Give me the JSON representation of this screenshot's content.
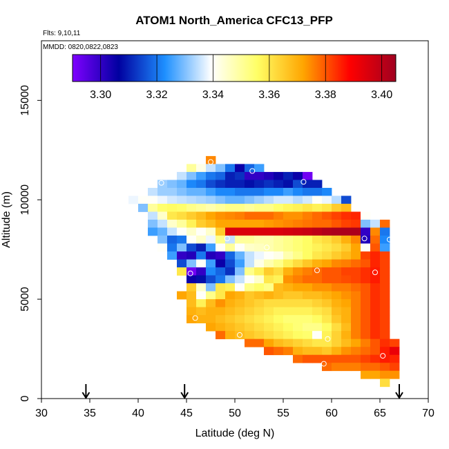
{
  "chart_data": {
    "type": "heatmap",
    "title": "ATOM1 North_America CFC13_PFP",
    "flights_label": "Flts: 9,10,11",
    "dates_label": "MMDD: 0820,0822,0823",
    "xlabel": "Latitude (deg N)",
    "ylabel": "Altitude (m)",
    "xlim": [
      30,
      70
    ],
    "ylim": [
      0,
      18000
    ],
    "x_ticks": [
      "30",
      "35",
      "40",
      "45",
      "50",
      "55",
      "60",
      "65",
      "70"
    ],
    "y_ticks": [
      "0",
      "5000",
      "10000",
      "15000"
    ],
    "colorbar": {
      "min": 3.29,
      "max": 3.405,
      "ticks": [
        "3.30",
        "3.32",
        "3.34",
        "3.36",
        "3.38",
        "3.40"
      ],
      "colors": [
        "#7f00ff",
        "#0000a0",
        "#1e90ff",
        "#ffffff",
        "#ffff66",
        "#ffa500",
        "#ff0000",
        "#a00020"
      ]
    },
    "cell_size": {
      "lat": 1.0,
      "alt": 400
    },
    "flight_markers_lat": [
      34.6,
      44.8,
      67.0
    ],
    "rows": [
      {
        "alt": 11800,
        "start": 47.0,
        "values": [
          3.375
        ]
      },
      {
        "alt": 11400,
        "start": 45.0,
        "values": [
          3.35,
          3.342,
          3.335,
          3.33,
          3.32,
          3.305,
          3.318,
          3.325
        ]
      },
      {
        "alt": 11000,
        "start": 44.0,
        "values": [
          3.335,
          3.33,
          3.325,
          3.32,
          3.318,
          3.31,
          3.312,
          3.3,
          3.3,
          3.302,
          3.305,
          3.31,
          3.305,
          3.292
        ]
      },
      {
        "alt": 10600,
        "start": 42.0,
        "values": [
          3.332,
          3.33,
          3.328,
          3.322,
          3.32,
          3.315,
          3.312,
          3.31,
          3.31,
          3.308,
          3.31,
          3.312,
          3.31,
          3.308,
          3.315,
          3.31,
          3.31
        ]
      },
      {
        "alt": 10200,
        "start": 41.0,
        "values": [
          3.335,
          3.332,
          3.332,
          3.33,
          3.328,
          3.328,
          3.325,
          3.322,
          3.322,
          3.32,
          3.32,
          3.32,
          3.322,
          3.322,
          3.325,
          3.322,
          3.32,
          3.32,
          3.322
        ]
      },
      {
        "alt": 9800,
        "start": 39.0,
        "values": [
          3.338,
          3.34,
          3.34,
          3.338,
          3.336,
          3.335,
          3.334,
          3.333,
          3.332,
          3.33,
          3.328,
          3.328,
          3.33,
          3.332,
          3.334,
          3.336,
          3.336,
          3.334,
          3.336,
          3.34,
          3.338,
          3.334,
          3.315
        ]
      },
      {
        "alt": 9400,
        "start": 40.0,
        "values": [
          3.33,
          3.35,
          3.355,
          3.356,
          3.355,
          3.352,
          3.35,
          3.348,
          3.35,
          3.352,
          3.352,
          3.35,
          3.352,
          3.352,
          3.355,
          3.357,
          3.358,
          3.36,
          3.358,
          3.36,
          3.365,
          3.368
        ]
      },
      {
        "alt": 9000,
        "start": 41.0,
        "values": [
          3.335,
          3.345,
          3.36,
          3.362,
          3.365,
          3.368,
          3.372,
          3.374,
          3.375,
          3.376,
          3.378,
          3.378,
          3.378,
          3.376,
          3.374,
          3.374,
          3.376,
          3.378,
          3.38,
          3.382,
          3.384,
          3.385,
          3.34
        ]
      },
      {
        "alt": 8600,
        "start": 41.0,
        "values": [
          3.33,
          3.335,
          3.345,
          3.35,
          3.358,
          3.365,
          3.368,
          3.372,
          3.372,
          3.372,
          3.372,
          3.372,
          3.373,
          3.374,
          3.375,
          3.376,
          3.377,
          3.378,
          3.378,
          3.38,
          3.382,
          3.383,
          3.33,
          3.335,
          3.378
        ]
      },
      {
        "alt": 8200,
        "start": 41.0,
        "values": [
          3.325,
          3.328,
          3.335,
          3.34,
          3.345,
          3.34,
          3.345,
          3.365,
          3.395,
          3.395,
          3.395,
          3.395,
          3.395,
          3.395,
          3.396,
          3.397,
          3.398,
          3.4,
          3.402,
          3.403,
          3.403,
          3.403,
          3.3,
          3.375,
          3.32
        ]
      },
      {
        "alt": 7800,
        "start": 42.0,
        "values": [
          3.33,
          3.318,
          3.32,
          3.34,
          3.345,
          3.338,
          3.352,
          3.335,
          3.35,
          3.35,
          3.348,
          3.348,
          3.35,
          3.352,
          3.354,
          3.356,
          3.36,
          3.362,
          3.365,
          3.37,
          3.375,
          3.302,
          3.378,
          3.322
        ]
      },
      {
        "alt": 7400,
        "start": 42.0,
        "values": [
          3.34,
          3.32,
          3.33,
          3.315,
          3.31,
          3.325,
          3.34,
          3.35,
          3.34,
          3.345,
          3.346,
          3.348,
          3.35,
          3.352,
          3.354,
          3.356,
          3.358,
          3.36,
          3.362,
          3.365,
          3.372,
          3.34,
          3.38,
          3.325
        ]
      },
      {
        "alt": 7000,
        "start": 43.0,
        "values": [
          3.325,
          3.3,
          3.302,
          3.32,
          3.302,
          3.3,
          3.318,
          3.328,
          3.335,
          3.338,
          3.34,
          3.342,
          3.348,
          3.352,
          3.356,
          3.36,
          3.362,
          3.365,
          3.368,
          3.372,
          3.382,
          3.385,
          3.382
        ]
      },
      {
        "alt": 6600,
        "start": 44.0,
        "values": [
          3.315,
          3.33,
          3.34,
          3.325,
          3.305,
          3.315,
          3.325,
          3.335,
          3.342,
          3.348,
          3.352,
          3.358,
          3.362,
          3.366,
          3.37,
          3.372,
          3.375,
          3.376,
          3.378,
          3.38,
          3.385,
          3.382
        ]
      },
      {
        "alt": 6200,
        "start": 44.0,
        "values": [
          3.36,
          3.292,
          3.3,
          3.322,
          3.318,
          3.312,
          3.33,
          3.352,
          3.358,
          3.365,
          3.362,
          3.37,
          3.374,
          3.376,
          3.378,
          3.38,
          3.38,
          3.382,
          3.382,
          3.384,
          3.386,
          3.382
        ]
      },
      {
        "alt": 5800,
        "start": 45.0,
        "values": [
          3.305,
          3.308,
          3.315,
          3.32,
          3.33,
          3.335,
          3.34,
          3.345,
          3.36,
          3.358,
          3.374,
          3.376,
          3.378,
          3.378,
          3.38,
          3.38,
          3.381,
          3.382,
          3.384,
          3.386,
          3.382
        ]
      },
      {
        "alt": 5400,
        "start": 45.0,
        "values": [
          3.365,
          3.345,
          3.33,
          3.36,
          3.358,
          3.34,
          3.352,
          3.355,
          3.352,
          3.368,
          3.37,
          3.372,
          3.372,
          3.374,
          3.374,
          3.376,
          3.376,
          3.378,
          3.38,
          3.384,
          3.382
        ]
      },
      {
        "alt": 5000,
        "start": 44.0,
        "values": [
          3.372,
          3.368,
          3.34,
          3.352,
          3.36,
          3.372,
          3.37,
          3.366,
          3.368,
          3.37,
          3.368,
          3.366,
          3.366,
          3.368,
          3.368,
          3.37,
          3.372,
          3.374,
          3.376,
          3.38,
          3.384,
          3.382
        ]
      },
      {
        "alt": 4600,
        "start": 45.0,
        "values": [
          3.368,
          3.358,
          3.368,
          3.374,
          3.37,
          3.368,
          3.366,
          3.364,
          3.362,
          3.362,
          3.362,
          3.362,
          3.362,
          3.364,
          3.366,
          3.37,
          3.372,
          3.376,
          3.38,
          3.384,
          3.382
        ]
      },
      {
        "alt": 4200,
        "start": 45.0,
        "values": [
          3.37,
          3.368,
          3.37,
          3.37,
          3.368,
          3.366,
          3.364,
          3.362,
          3.36,
          3.358,
          3.358,
          3.358,
          3.358,
          3.36,
          3.362,
          3.368,
          3.37,
          3.376,
          3.38,
          3.384,
          3.382
        ]
      },
      {
        "alt": 3800,
        "start": 45.0,
        "values": [
          3.372,
          3.37,
          3.37,
          3.368,
          3.366,
          3.364,
          3.362,
          3.36,
          3.358,
          3.356,
          3.354,
          3.354,
          3.354,
          3.356,
          3.36,
          3.366,
          3.37,
          3.376,
          3.38,
          3.384,
          3.382
        ]
      },
      {
        "alt": 3400,
        "start": 47.0,
        "values": [
          3.372,
          3.37,
          3.368,
          3.366,
          3.364,
          3.362,
          3.36,
          3.358,
          3.356,
          3.354,
          3.352,
          3.352,
          3.356,
          3.362,
          3.368,
          3.376,
          3.38,
          3.384,
          3.382
        ]
      },
      {
        "alt": 3000,
        "start": 48.0,
        "values": [
          3.378,
          3.37,
          3.368,
          3.366,
          3.364,
          3.362,
          3.36,
          3.358,
          3.356,
          3.355,
          3.34,
          3.358,
          3.364,
          3.37,
          3.376,
          3.38,
          3.384,
          3.382
        ]
      },
      {
        "alt": 2600,
        "start": 51.0,
        "values": [
          3.378,
          3.378,
          3.372,
          3.368,
          3.366,
          3.364,
          3.362,
          3.36,
          3.36,
          3.364,
          3.368,
          3.372,
          3.376,
          3.38,
          3.384,
          3.382
        ]
      },
      {
        "alt": 2200,
        "start": 53.0,
        "values": [
          3.38,
          3.378,
          3.376,
          3.37,
          3.368,
          3.368,
          3.366,
          3.37,
          3.374,
          3.376,
          3.378,
          3.38,
          3.386,
          3.392
        ]
      },
      {
        "alt": 1800,
        "start": 56.0,
        "values": [
          3.378,
          3.38,
          3.38,
          3.38,
          3.38,
          3.38,
          3.38,
          3.382,
          3.384,
          3.386,
          3.385
        ]
      },
      {
        "alt": 1400,
        "start": 59.0,
        "values": [
          3.378,
          3.376,
          3.376,
          3.376,
          3.378,
          3.378,
          3.38,
          3.382
        ]
      },
      {
        "alt": 1000,
        "start": 63.0,
        "values": [
          3.372,
          3.372,
          3.374,
          3.374
        ]
      },
      {
        "alt": 600,
        "start": 65.0,
        "values": [
          3.362
        ]
      }
    ],
    "sample_points": [
      {
        "lat": 47.5,
        "alt": 11900
      },
      {
        "lat": 51.8,
        "alt": 11450
      },
      {
        "lat": 57.1,
        "alt": 10900
      },
      {
        "lat": 42.4,
        "alt": 10850
      },
      {
        "lat": 38.9,
        "alt": 9600
      },
      {
        "lat": 49.2,
        "alt": 8050
      },
      {
        "lat": 63.4,
        "alt": 8050
      },
      {
        "lat": 66.0,
        "alt": 8000
      },
      {
        "lat": 53.3,
        "alt": 7600
      },
      {
        "lat": 58.5,
        "alt": 6450
      },
      {
        "lat": 64.5,
        "alt": 6350
      },
      {
        "lat": 45.4,
        "alt": 6300
      },
      {
        "lat": 45.9,
        "alt": 4050
      },
      {
        "lat": 50.5,
        "alt": 3200
      },
      {
        "lat": 59.6,
        "alt": 3000
      },
      {
        "lat": 59.2,
        "alt": 1750
      },
      {
        "lat": 65.3,
        "alt": 2150
      }
    ]
  }
}
